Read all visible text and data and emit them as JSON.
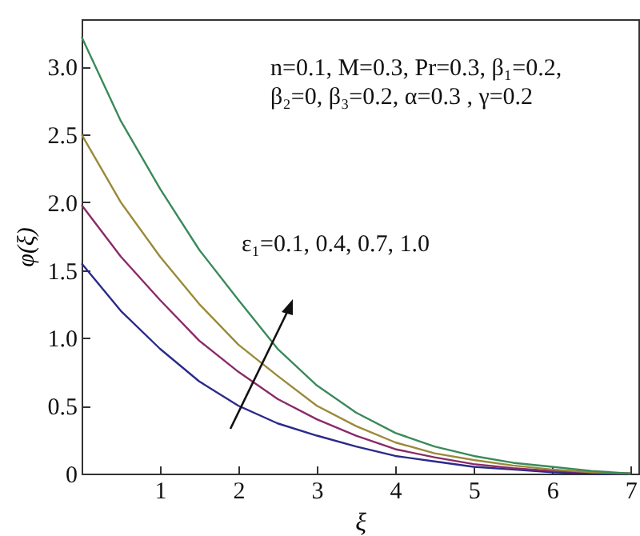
{
  "chart_data": {
    "type": "line",
    "xlabel": "ξ",
    "ylabel": "φ(ξ)",
    "x": [
      0,
      0.5,
      1,
      1.5,
      2,
      2.5,
      3,
      3.5,
      4,
      4.5,
      5,
      5.5,
      6,
      6.5,
      7
    ],
    "series": [
      {
        "color": "#2a2a8a",
        "values": [
          1.55,
          1.2,
          0.92,
          0.68,
          0.5,
          0.37,
          0.28,
          0.2,
          0.13,
          0.09,
          0.05,
          0.03,
          0.01,
          0,
          0
        ]
      },
      {
        "color": "#8a2a6a",
        "values": [
          1.98,
          1.6,
          1.28,
          0.98,
          0.75,
          0.55,
          0.4,
          0.28,
          0.18,
          0.12,
          0.07,
          0.04,
          0.02,
          0.01,
          0
        ]
      },
      {
        "color": "#9a8a3a",
        "values": [
          2.5,
          2.0,
          1.6,
          1.25,
          0.95,
          0.72,
          0.5,
          0.35,
          0.23,
          0.15,
          0.1,
          0.06,
          0.03,
          0.01,
          0
        ]
      },
      {
        "color": "#3a8a5a",
        "values": [
          3.22,
          2.6,
          2.1,
          1.65,
          1.28,
          0.92,
          0.65,
          0.45,
          0.3,
          0.2,
          0.13,
          0.08,
          0.05,
          0.02,
          0
        ]
      }
    ],
    "xlim": [
      0,
      7.1
    ],
    "ylim": [
      0,
      3.35
    ],
    "xticks": [
      1,
      2,
      3,
      4,
      5,
      6,
      7
    ],
    "yticks": [
      0,
      0.5,
      {
        "value": 1,
        "label": "1.0"
      },
      1.5,
      {
        "value": 2,
        "label": "2.0"
      },
      2.5,
      {
        "value": 3,
        "label": "3.0"
      }
    ],
    "annotations": [
      "n=0.1, M=0.3, Pr=0.3, β₁=0.2,",
      "β₂=0, β₃=0.2, α=0.3 , γ=0.2",
      "ε₁=0.1, 0.4, 0.7, 1.0"
    ],
    "grid": false,
    "legend": false,
    "marker": "none",
    "line_style": "solid"
  }
}
